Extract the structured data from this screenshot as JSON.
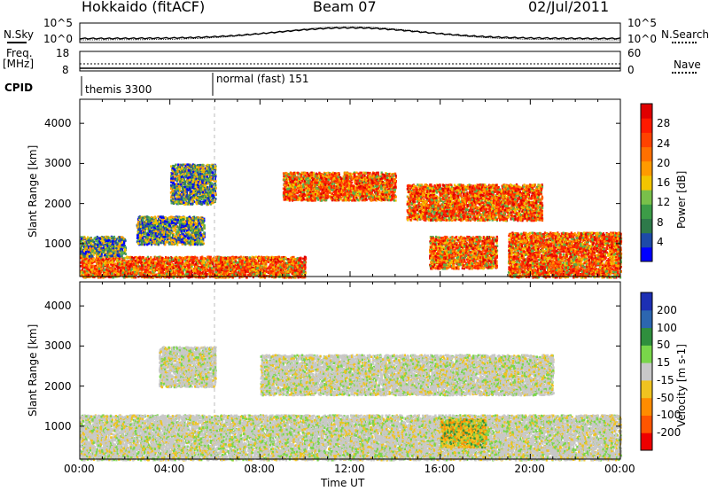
{
  "header": {
    "station": "Hokkaido (fitACF)",
    "beam": "Beam 07",
    "date": "02/Jul/2011"
  },
  "top_panels": {
    "nsky_label": "N.Sky",
    "nsky_ticks": [
      "10^5",
      "10^0"
    ],
    "nsearch_label": "N.Search",
    "nsearch_ticks": [
      "10^5",
      "10^0"
    ],
    "freq_label_line1": "Freq.",
    "freq_label_line2": "[MHz]",
    "freq_ticks": [
      "18",
      "8"
    ],
    "nave_label": "Nave",
    "nave_ticks": [
      "60",
      "0"
    ],
    "cpid_label": "CPID",
    "cpid_modes": [
      "themis 3300",
      "normal (fast) 151"
    ]
  },
  "colors": {
    "power_scale": [
      "#0000ff",
      "#1d4aa8",
      "#3c8c4b",
      "#58b050",
      "#f2c500",
      "#ff9a00",
      "#ff5a00",
      "#ff2200",
      "#e00000"
    ],
    "velocity_scale": [
      "#1c2fb4",
      "#2c66b0",
      "#2f8f3d",
      "#79d64a",
      "#c8c8c8",
      "#f0c320",
      "#ff8c00",
      "#ff5500",
      "#ee0000"
    ],
    "power_colorbar_blocks": [
      "#0000ff",
      "#1d4aa8",
      "#2e7a4a",
      "#3c9c47",
      "#79c04a",
      "#f2c500",
      "#ff9a00",
      "#ff7000",
      "#ff4200",
      "#ff1a00",
      "#e00000"
    ],
    "velocity_colorbar_blocks": [
      "#1c2fb4",
      "#2c66b0",
      "#2f8f3d",
      "#79d64a",
      "#c8c8c8",
      "#f0c320",
      "#ff8c00",
      "#ff5500",
      "#ee0000"
    ]
  },
  "chart_data": [
    {
      "type": "heatmap",
      "name": "power",
      "xlabel": "",
      "ylabel": "Slant Range [km]",
      "x_unit": "hours UT",
      "xlim": [
        0,
        24
      ],
      "ylim": [
        180,
        4600
      ],
      "yticks": [
        1000,
        2000,
        3000,
        4000
      ],
      "colorbar_label": "Power [dB]",
      "colorbar_ticks": [
        "28",
        "24",
        "20",
        "16",
        "12",
        "8",
        "4"
      ],
      "regions": [
        {
          "t0": 0.0,
          "t1": 6.5,
          "r0": 180,
          "r1": 700,
          "level": "high"
        },
        {
          "t0": 0.0,
          "t1": 2.0,
          "r0": 700,
          "r1": 1200,
          "level": "mid"
        },
        {
          "t0": 2.5,
          "t1": 5.5,
          "r0": 1000,
          "r1": 1700,
          "level": "mid"
        },
        {
          "t0": 4.0,
          "t1": 6.0,
          "r0": 2000,
          "r1": 3000,
          "level": "mid"
        },
        {
          "t0": 6.0,
          "t1": 10.0,
          "r0": 180,
          "r1": 700,
          "level": "high"
        },
        {
          "t0": 9.0,
          "t1": 14.0,
          "r0": 2100,
          "r1": 2800,
          "level": "high"
        },
        {
          "t0": 14.5,
          "t1": 20.5,
          "r0": 1600,
          "r1": 2500,
          "level": "high"
        },
        {
          "t0": 15.5,
          "t1": 18.5,
          "r0": 400,
          "r1": 1200,
          "level": "high"
        },
        {
          "t0": 19.0,
          "t1": 24.0,
          "r0": 180,
          "r1": 1300,
          "level": "high"
        }
      ]
    },
    {
      "type": "heatmap",
      "name": "velocity",
      "xlabel": "Time UT",
      "ylabel": "Slant Range [km]",
      "x_unit": "hours UT",
      "xlim": [
        0,
        24
      ],
      "ylim": [
        180,
        4600
      ],
      "yticks": [
        1000,
        2000,
        3000,
        4000
      ],
      "xtick_labels": [
        "00:00",
        "04:00",
        "08:00",
        "12:00",
        "16:00",
        "20:00",
        "00:00"
      ],
      "colorbar_label": "Velocity [m s-1]",
      "colorbar_ticks": [
        "200",
        "100",
        "50",
        "15",
        "-15",
        "-50",
        "-100",
        "-200"
      ],
      "regions": [
        {
          "t0": 0.0,
          "t1": 24.0,
          "r0": 180,
          "r1": 1300,
          "level": "near-zero"
        },
        {
          "t0": 3.5,
          "t1": 6.0,
          "r0": 2000,
          "r1": 3000,
          "level": "near-zero"
        },
        {
          "t0": 8.0,
          "t1": 21.0,
          "r0": 1800,
          "r1": 2800,
          "level": "near-zero"
        },
        {
          "t0": 16.0,
          "t1": 18.0,
          "r0": 500,
          "r1": 1200,
          "level": "negative"
        }
      ]
    }
  ]
}
